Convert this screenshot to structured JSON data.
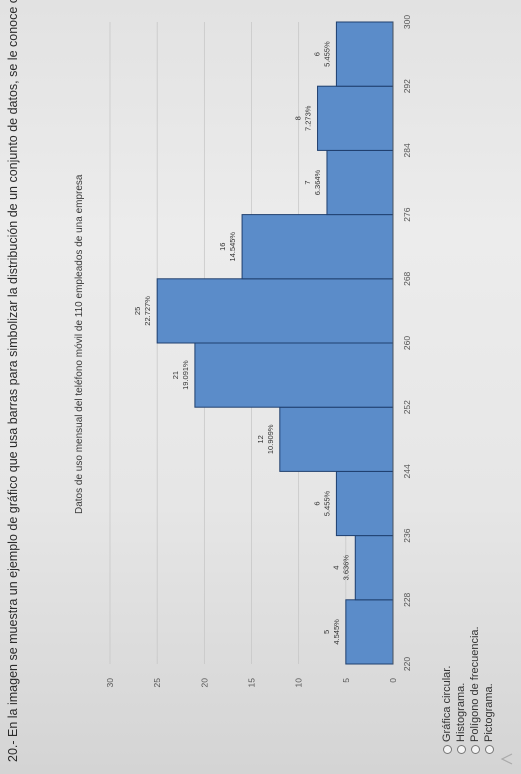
{
  "question": {
    "text": "20.- En la imagen se muestra un ejemplo de gráfico que usa barras para simbolizar la distribución de un conjunto de datos, se le conoce como:"
  },
  "chart_data": {
    "type": "bar",
    "title": "Datos de uso mensual del teléfono móvil de 110 empleados de una empresa",
    "bin_edges": [
      220,
      228,
      236,
      244,
      252,
      260,
      268,
      276,
      284,
      292,
      300
    ],
    "values": [
      5,
      4,
      6,
      12,
      21,
      25,
      16,
      7,
      8,
      6
    ],
    "percent_labels": [
      "4.545%",
      "3.636%",
      "5.455%",
      "10.909%",
      "19.091%",
      "22.727%",
      "14.545%",
      "6.364%",
      "7.273%",
      "5.455%"
    ],
    "x_ticks": [
      "220",
      "228",
      "236",
      "244",
      "252",
      "260",
      "268",
      "276",
      "284",
      "292",
      "300"
    ],
    "y_ticks": [
      "0",
      "5",
      "10",
      "15",
      "20",
      "25",
      "30"
    ],
    "ylim": [
      0,
      30
    ],
    "bar_color": "#5b8cc9",
    "bar_edge_color": "#1f3f6e",
    "grid": true
  },
  "options": [
    "Gráfica circular.",
    "Histograma.",
    "Polígono de frecuencia.",
    "Pictograma."
  ],
  "icons": {
    "radio": "radio-unselected-icon"
  }
}
